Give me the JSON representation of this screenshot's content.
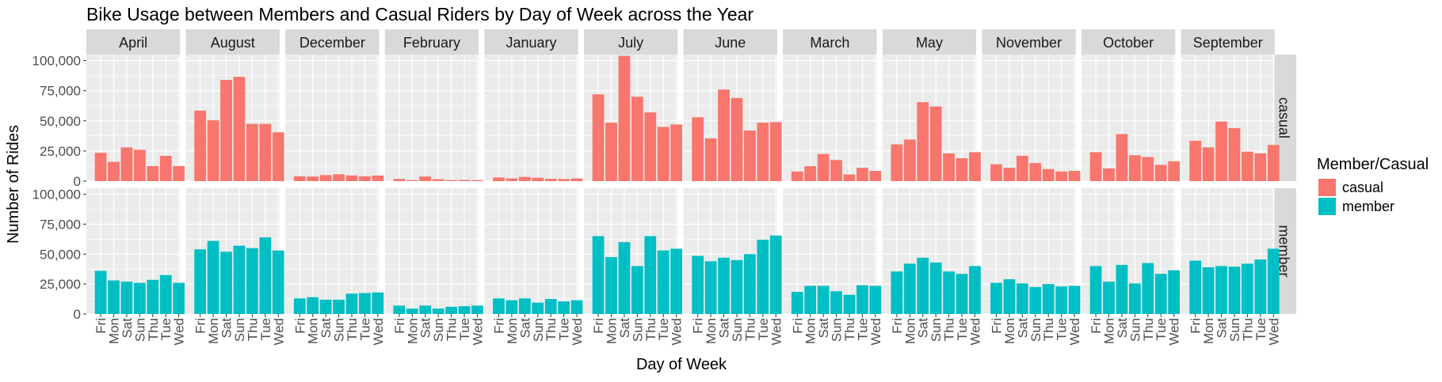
{
  "chart_data": {
    "type": "bar",
    "title": "Bike Usage between Members and Casual Riders by Day of Week across the Year",
    "xlabel": "Day of Week",
    "ylabel": "Number of Rides",
    "categories": [
      "Fri",
      "Mon",
      "Sat",
      "Sun",
      "Thu",
      "Tue",
      "Wed"
    ],
    "facet_columns": [
      "April",
      "August",
      "December",
      "February",
      "January",
      "July",
      "June",
      "March",
      "May",
      "November",
      "October",
      "September"
    ],
    "facet_rows": [
      "casual",
      "member"
    ],
    "ylim": [
      0,
      105000
    ],
    "y_ticks": [
      0,
      25000,
      50000,
      75000,
      100000
    ],
    "y_tick_labels": [
      "0",
      "25,000",
      "50,000",
      "75,000",
      "100,000"
    ],
    "grid": true,
    "legend": {
      "title": "Member/Casual",
      "position": "right",
      "entries": [
        {
          "name": "casual",
          "color": "#F8766D"
        },
        {
          "name": "member",
          "color": "#00BFC4"
        }
      ]
    },
    "series": [
      {
        "name": "casual",
        "color": "#F8766D",
        "values": {
          "April": [
            23500,
            16000,
            28000,
            26000,
            12500,
            21000,
            12500
          ],
          "August": [
            58500,
            50500,
            84000,
            86500,
            47500,
            47500,
            40500
          ],
          "December": [
            4000,
            3800,
            5000,
            5700,
            4700,
            4000,
            4600
          ],
          "February": [
            1800,
            800,
            3800,
            1600,
            800,
            1000,
            800
          ],
          "January": [
            3000,
            2200,
            3500,
            2800,
            1900,
            1700,
            2200
          ],
          "July": [
            72000,
            48500,
            104000,
            70000,
            57000,
            45000,
            47000
          ],
          "June": [
            53000,
            35500,
            76000,
            69000,
            42000,
            48500,
            49000
          ],
          "March": [
            8000,
            12500,
            22500,
            17500,
            5500,
            11000,
            8500
          ],
          "May": [
            30500,
            34500,
            65500,
            62000,
            23000,
            19000,
            24000
          ],
          "November": [
            14000,
            11000,
            21000,
            15000,
            10000,
            8000,
            8500
          ],
          "October": [
            24000,
            10500,
            39000,
            21500,
            20000,
            13500,
            16500
          ],
          "September": [
            33500,
            28000,
            49500,
            44000,
            24500,
            23000,
            30000
          ]
        }
      },
      {
        "name": "member",
        "color": "#00BFC4",
        "values": {
          "April": [
            36000,
            28000,
            27000,
            26000,
            28500,
            32500,
            26000
          ],
          "August": [
            54000,
            61000,
            52000,
            57000,
            55000,
            64000,
            53000
          ],
          "December": [
            13000,
            14000,
            12000,
            12000,
            17000,
            17500,
            18000
          ],
          "February": [
            7000,
            4500,
            7000,
            4500,
            6000,
            6500,
            7000
          ],
          "January": [
            13000,
            11500,
            13000,
            9500,
            12500,
            10500,
            11500
          ],
          "July": [
            65000,
            47500,
            60000,
            40000,
            65000,
            53000,
            54500
          ],
          "June": [
            48500,
            44000,
            47000,
            45000,
            50000,
            62000,
            65500
          ],
          "March": [
            18500,
            23500,
            23500,
            19000,
            16000,
            24000,
            23500
          ],
          "May": [
            35500,
            42000,
            47000,
            43000,
            35500,
            33500,
            40000
          ],
          "November": [
            26000,
            29000,
            25500,
            22500,
            25000,
            23000,
            23500
          ],
          "October": [
            40000,
            27000,
            41000,
            25500,
            42500,
            33500,
            36500
          ],
          "September": [
            44500,
            39000,
            40000,
            39500,
            42000,
            45500,
            54500
          ]
        }
      }
    ]
  }
}
